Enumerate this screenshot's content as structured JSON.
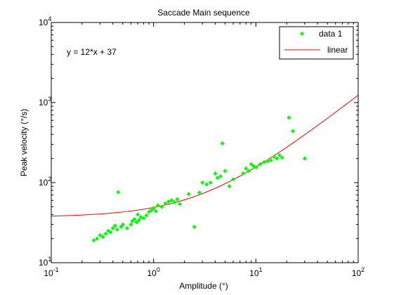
{
  "chart_data": {
    "type": "scatter",
    "title": "Saccade Main sequence",
    "xlabel": "Amplitude (°)",
    "ylabel": "Peak velocity (°/s)",
    "xscale": "log",
    "yscale": "log",
    "xlim": [
      0.1,
      100
    ],
    "ylim": [
      10,
      10000
    ],
    "x_ticks": [
      {
        "base": "10",
        "exp": "-1",
        "value": 0.1
      },
      {
        "base": "10",
        "exp": "0",
        "value": 1
      },
      {
        "base": "10",
        "exp": "1",
        "value": 10
      },
      {
        "base": "10",
        "exp": "2",
        "value": 100
      }
    ],
    "y_ticks": [
      {
        "base": "10",
        "exp": "1",
        "value": 10
      },
      {
        "base": "10",
        "exp": "2",
        "value": 100
      },
      {
        "base": "10",
        "exp": "3",
        "value": 1000
      },
      {
        "base": "10",
        "exp": "4",
        "value": 10000
      }
    ],
    "grid": false,
    "legend": {
      "position": "top-right",
      "entries": [
        "data 1",
        "linear"
      ]
    },
    "annotation": "y = 12*x + 37",
    "series": [
      {
        "name": "data 1",
        "style": "markers",
        "color": "#00ff00",
        "marker": "diamond",
        "points": [
          [
            0.26,
            19
          ],
          [
            0.28,
            20
          ],
          [
            0.3,
            22
          ],
          [
            0.32,
            21
          ],
          [
            0.34,
            23
          ],
          [
            0.36,
            25
          ],
          [
            0.38,
            24
          ],
          [
            0.4,
            27
          ],
          [
            0.42,
            29
          ],
          [
            0.44,
            26
          ],
          [
            0.45,
            76
          ],
          [
            0.48,
            28
          ],
          [
            0.5,
            30
          ],
          [
            0.55,
            27
          ],
          [
            0.6,
            30
          ],
          [
            0.62,
            33
          ],
          [
            0.65,
            35
          ],
          [
            0.68,
            32
          ],
          [
            0.7,
            40
          ],
          [
            0.72,
            34
          ],
          [
            0.75,
            37
          ],
          [
            0.8,
            36
          ],
          [
            0.85,
            39
          ],
          [
            0.9,
            43
          ],
          [
            0.95,
            45
          ],
          [
            1.0,
            48
          ],
          [
            1.05,
            44
          ],
          [
            1.1,
            52
          ],
          [
            1.2,
            50
          ],
          [
            1.3,
            55
          ],
          [
            1.4,
            58
          ],
          [
            1.5,
            60
          ],
          [
            1.6,
            57
          ],
          [
            1.7,
            62
          ],
          [
            1.8,
            54
          ],
          [
            2.2,
            72
          ],
          [
            2.5,
            28
          ],
          [
            2.8,
            75
          ],
          [
            3.0,
            100
          ],
          [
            3.3,
            95
          ],
          [
            3.6,
            100
          ],
          [
            4.0,
            130
          ],
          [
            4.2,
            115
          ],
          [
            4.5,
            120
          ],
          [
            4.7,
            310
          ],
          [
            5.0,
            140
          ],
          [
            5.5,
            90
          ],
          [
            6.0,
            110
          ],
          [
            7.5,
            130
          ],
          [
            8.0,
            150
          ],
          [
            8.5,
            140
          ],
          [
            9.0,
            170
          ],
          [
            9.5,
            160
          ],
          [
            10.0,
            155
          ],
          [
            11.0,
            170
          ],
          [
            12.0,
            180
          ],
          [
            13.0,
            185
          ],
          [
            14.0,
            190
          ],
          [
            15.0,
            210
          ],
          [
            16.0,
            200
          ],
          [
            17.0,
            220
          ],
          [
            18.0,
            205
          ],
          [
            21.0,
            650
          ],
          [
            23.0,
            440
          ],
          [
            30.0,
            200
          ]
        ]
      },
      {
        "name": "linear",
        "style": "line",
        "color": "#ff0000",
        "equation": "y = 12*x + 37",
        "slope": 12,
        "intercept": 37
      }
    ]
  }
}
